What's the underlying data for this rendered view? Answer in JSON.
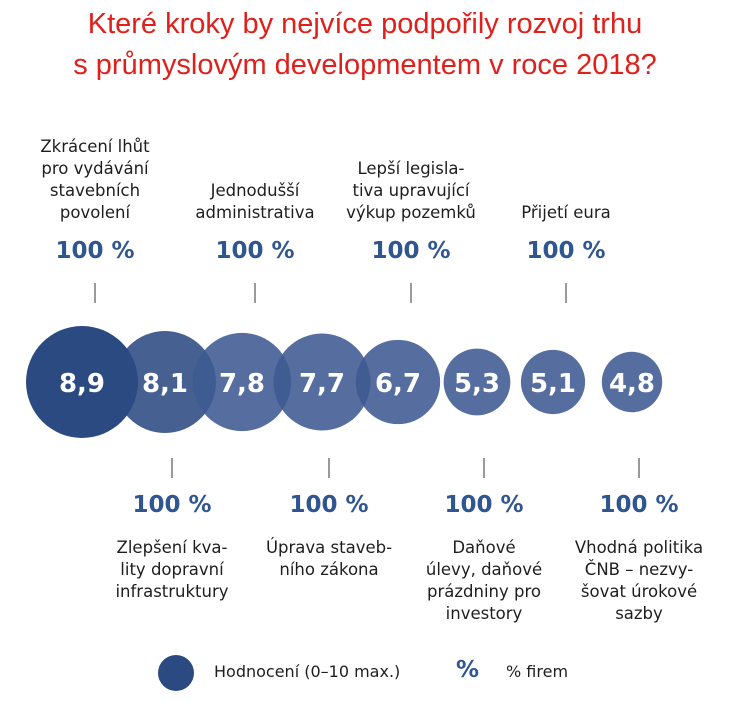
{
  "title": {
    "line1": "Které kroky by nejvíce podpořily rozvoj trhu",
    "line2": "s průmyslovým developmentem v roce 2018?"
  },
  "colors": {
    "title": "#e0201b",
    "bubble": "#2b4a82",
    "bubble_light": "#3d5a92",
    "percent": "#2f5690"
  },
  "legend": {
    "bubble_label": "Hodnocení (0–10 max.)",
    "percent_symbol": "%",
    "percent_label": "% firem"
  },
  "chart_data": {
    "type": "bubble",
    "value_label": "Hodnocení (0–10 max.)",
    "value_range": [
      0,
      10
    ],
    "items": [
      {
        "label": "Zkrácení lhůt\npro vydávání\nstavebních\npovolení",
        "rating": 8.9,
        "rating_text": "8,9",
        "share": 100,
        "share_text": "100 %",
        "label_position": "top"
      },
      {
        "label": "Zlepšení kva-\nlity dopravní\ninfrastruktury",
        "rating": 8.1,
        "rating_text": "8,1",
        "share": 100,
        "share_text": "100 %",
        "label_position": "bottom"
      },
      {
        "label": "Jednodušší\nadministrativa",
        "rating": 7.8,
        "rating_text": "7,8",
        "share": 100,
        "share_text": "100 %",
        "label_position": "top"
      },
      {
        "label": "Úprava staveb-\nního zákona",
        "rating": 7.7,
        "rating_text": "7,7",
        "share": 100,
        "share_text": "100 %",
        "label_position": "bottom"
      },
      {
        "label": "Lepší legisla-\ntiva upravující\nvýkup pozemků",
        "rating": 6.7,
        "rating_text": "6,7",
        "share": 100,
        "share_text": "100 %",
        "label_position": "top"
      },
      {
        "label": "Daňové\núlevy, daňové\nprázdniny pro\ninvestory",
        "rating": 5.3,
        "rating_text": "5,3",
        "share": 100,
        "share_text": "100 %",
        "label_position": "bottom"
      },
      {
        "label": "Přijetí eura",
        "rating": 5.1,
        "rating_text": "5,1",
        "share": 100,
        "share_text": "100 %",
        "label_position": "top"
      },
      {
        "label": "Vhodná politika\nČNB – nezvy-\nšovat úrokové\nsazby",
        "rating": 4.8,
        "rating_text": "4,8",
        "share": 100,
        "share_text": "100 %",
        "label_position": "bottom"
      }
    ]
  }
}
